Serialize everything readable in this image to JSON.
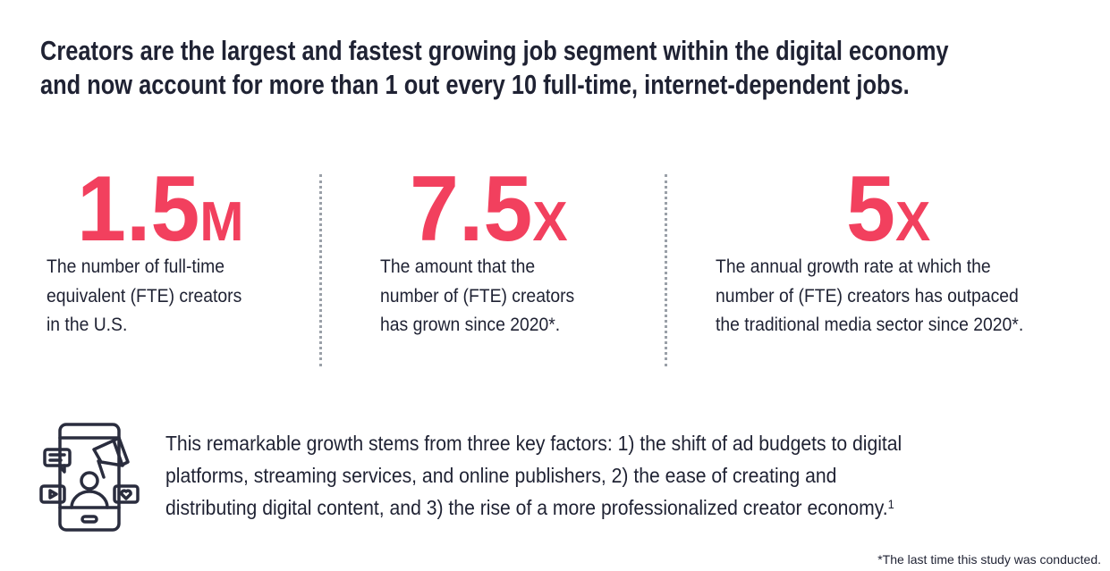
{
  "headline": {
    "line1": "Creators are the largest and fastest growing job segment within the digital economy",
    "line2": "and now account for more than 1 out every 10 full-time, internet-dependent jobs."
  },
  "stats": [
    {
      "number": "1.5",
      "unit": "M",
      "lines": [
        "The number of full-time",
        "equivalent (FTE) creators",
        "in the U.S."
      ]
    },
    {
      "number": "7.5",
      "unit": "X",
      "lines": [
        "The amount that the",
        "number of (FTE) creators",
        "has grown since 2020*."
      ]
    },
    {
      "number": "5",
      "unit": "X",
      "lines": [
        "The annual growth rate at which the",
        "number of (FTE) creators has outpaced",
        "the traditional media sector since 2020*."
      ]
    }
  ],
  "factors": {
    "icon": "smartphone-creator-megaphone-icon",
    "lines": [
      "This remarkable growth stems from three key factors: 1) the shift of ad budgets to digital",
      "platforms, streaming services, and online publishers, 2) the ease of creating and",
      "distributing digital content, and 3) the rise of a more professionalized creator economy."
    ],
    "footnote_ref": "1"
  },
  "footnote": "*The last time this study was conducted.",
  "colors": {
    "accent": "#f2405e",
    "text": "#1f2233"
  }
}
